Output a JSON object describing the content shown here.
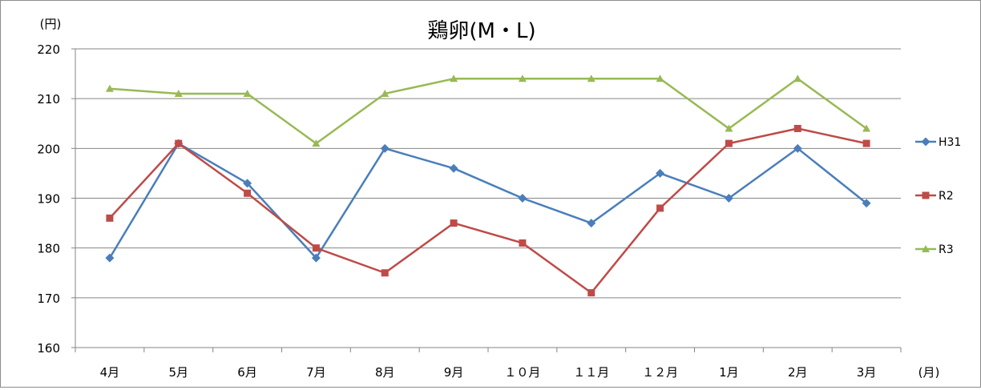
{
  "chart_data": {
    "type": "line",
    "title": "鶏卵(M・L)",
    "ylabel": "(円)",
    "xlabel": "(月)",
    "categories": [
      "4月",
      "5月",
      "6月",
      "7月",
      "8月",
      "9月",
      "１０月",
      "１１月",
      "１２月",
      "1月",
      "2月",
      "3月"
    ],
    "ylim": [
      160,
      220
    ],
    "yticks": [
      160,
      170,
      180,
      190,
      200,
      210,
      220
    ],
    "grid": true,
    "legend_position": "right",
    "series": [
      {
        "name": "H31",
        "color": "#4a7ebb",
        "marker": "diamond",
        "values": [
          178,
          201,
          193,
          178,
          200,
          196,
          190,
          185,
          195,
          190,
          200,
          189
        ]
      },
      {
        "name": "R2",
        "color": "#be4b48",
        "marker": "square",
        "values": [
          186,
          201,
          191,
          180,
          175,
          185,
          181,
          171,
          188,
          201,
          204,
          201
        ]
      },
      {
        "name": "R3",
        "color": "#98b954",
        "marker": "triangle",
        "values": [
          212,
          211,
          211,
          201,
          211,
          214,
          214,
          214,
          214,
          204,
          214,
          204
        ]
      }
    ]
  }
}
